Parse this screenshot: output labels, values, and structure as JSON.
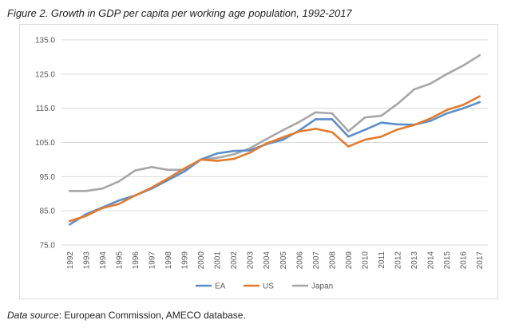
{
  "figure": {
    "title": "Figure 2. Growth in GDP per capita per working age population, 1992-2017",
    "source_label": "Data source",
    "source_text": ": European Commission, AMECO database."
  },
  "chart_data": {
    "type": "line",
    "title": "",
    "xlabel": "",
    "ylabel": "",
    "ylim": [
      75,
      135
    ],
    "yticks": [
      "75.0",
      "85.0",
      "95.0",
      "105.0",
      "115.0",
      "125.0",
      "135.0"
    ],
    "grid": true,
    "legend": "bottom",
    "x": [
      "1992",
      "1993",
      "1994",
      "1995",
      "1996",
      "1997",
      "1998",
      "1999",
      "2000",
      "2001",
      "2002",
      "2003",
      "2004",
      "2005",
      "2006",
      "2007",
      "2008",
      "2009",
      "2010",
      "2011",
      "2012",
      "2013",
      "2014",
      "2015",
      "2016",
      "2017"
    ],
    "series": [
      {
        "name": "EA",
        "color": "#5b8fc9",
        "values": [
          81.0,
          84.0,
          86.0,
          88.0,
          89.5,
          91.5,
          94.0,
          96.5,
          100.0,
          101.8,
          102.5,
          102.7,
          104.5,
          105.8,
          108.5,
          111.8,
          111.8,
          106.7,
          108.7,
          110.8,
          110.3,
          110.2,
          111.3,
          113.5,
          115.0,
          116.8
        ],
        "label_color": "#595959"
      },
      {
        "name": "US",
        "color": "#e37b2e",
        "values": [
          82.0,
          83.5,
          85.8,
          87.0,
          89.5,
          91.8,
          94.5,
          97.4,
          100.0,
          99.6,
          100.2,
          102.0,
          104.7,
          106.5,
          108.2,
          109.0,
          108.0,
          103.8,
          105.8,
          106.7,
          108.8,
          110.1,
          112.0,
          114.5,
          116.0,
          118.5
        ]
      },
      {
        "name": "Japan",
        "color": "#a6a6a6",
        "values": [
          90.8,
          90.8,
          91.5,
          93.6,
          96.8,
          97.8,
          97.0,
          97.0,
          100.0,
          100.5,
          101.5,
          103.3,
          106.0,
          108.6,
          111.0,
          113.8,
          113.5,
          108.3,
          112.3,
          112.8,
          116.3,
          120.5,
          122.2,
          125.0,
          127.5,
          130.5
        ]
      }
    ]
  }
}
